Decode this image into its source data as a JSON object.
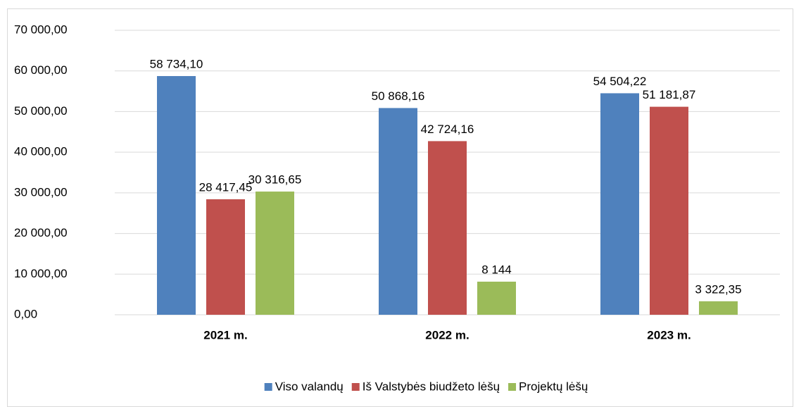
{
  "chart_data": {
    "type": "bar",
    "categories": [
      "2021 m.",
      "2022 m.",
      "2023 m."
    ],
    "series": [
      {
        "name": "Viso valandų",
        "color": "#4f81bd",
        "values": [
          58734.1,
          50868.16,
          54504.22
        ],
        "value_labels": [
          "58 734,10",
          "50 868,16",
          "54 504,22"
        ]
      },
      {
        "name": "Iš Valstybės biudžeto lėšų",
        "color": "#c0504d",
        "values": [
          28417.45,
          42724.16,
          51181.87
        ],
        "value_labels": [
          "28 417,45",
          "42 724,16",
          "51 181,87"
        ]
      },
      {
        "name": "Projektų lėšų",
        "color": "#9bbb59",
        "values": [
          30316.65,
          8144,
          3322.35
        ],
        "value_labels": [
          "30 316,65",
          "8 144",
          "3 322,35"
        ]
      }
    ],
    "ylim": [
      0,
      70000
    ],
    "yticks": [
      {
        "value": 0,
        "label": "0,00"
      },
      {
        "value": 10000,
        "label": "10 000,00"
      },
      {
        "value": 20000,
        "label": "20 000,00"
      },
      {
        "value": 30000,
        "label": "30 000,00"
      },
      {
        "value": 40000,
        "label": "40 000,00"
      },
      {
        "value": 50000,
        "label": "50 000,00"
      },
      {
        "value": 60000,
        "label": "60 000,00"
      },
      {
        "value": 70000,
        "label": "70 000,00"
      }
    ],
    "grid": true,
    "legend": "bottom"
  }
}
